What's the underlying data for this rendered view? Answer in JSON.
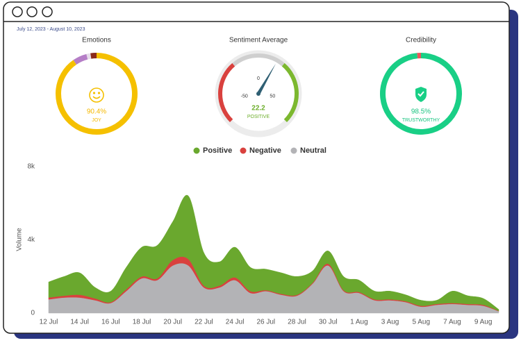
{
  "date_range": "July 12, 2023 - August 10, 2023",
  "chart_data": [
    {
      "type": "donut",
      "title": "Emotions",
      "values": [
        90.4,
        5.6,
        1.6,
        2.4
      ],
      "colors": [
        "#f5c000",
        "#b57ec7",
        "#e6dce9",
        "#8b2a1a"
      ],
      "value_labels": [
        "90.4%",
        null,
        null,
        null
      ],
      "label": "JOY",
      "text_color": "#f5b800"
    },
    {
      "type": "gauge",
      "title": "Sentiment Average",
      "value": 22.2,
      "label": "POSITIVE",
      "lim": [
        -100,
        100
      ],
      "ticks": [
        -50,
        0,
        50
      ],
      "bands": [
        {
          "from": -100,
          "to": -30,
          "color": "#d9413e"
        },
        {
          "from": -30,
          "to": 30,
          "color": "#cfcfcf"
        },
        {
          "from": 30,
          "to": 100,
          "color": "#7cb82f"
        }
      ],
      "text_color": "#6cae2a"
    },
    {
      "type": "donut",
      "title": "Credibility",
      "values": [
        98.5,
        1.5
      ],
      "colors": [
        "#19cf86",
        "#e8575a"
      ],
      "value_labels": [
        "98.5%",
        null
      ],
      "label": "TRUSTWORTHY",
      "text_color": "#19c480"
    },
    {
      "type": "area",
      "stacked": true,
      "y_label": "Volume",
      "categories": [
        "12 Jul",
        null,
        "14 Jul",
        null,
        "16 Jul",
        null,
        "18 Jul",
        null,
        "20 Jul",
        null,
        "22 Jul",
        null,
        "24 Jul",
        null,
        "26 Jul",
        null,
        "28 Jul",
        null,
        "30 Jul",
        null,
        "1 Aug",
        null,
        "3 Aug",
        null,
        "5 Aug",
        null,
        "7 Aug",
        null,
        "9 Aug",
        null
      ],
      "series": [
        {
          "name": "Positive",
          "color": "#6aa82e",
          "values": [
            850,
            1050,
            1200,
            600,
            600,
            1200,
            1600,
            1800,
            2100,
            3450,
            1800,
            1300,
            1650,
            1300,
            1150,
            1150,
            1000,
            650,
            700,
            750,
            650,
            450,
            450,
            350,
            300,
            200,
            650,
            450,
            350,
            80
          ]
        },
        {
          "name": "Negative",
          "color": "#d9413e",
          "values": [
            100,
            100,
            150,
            100,
            50,
            100,
            100,
            100,
            300,
            350,
            100,
            100,
            150,
            100,
            50,
            50,
            50,
            50,
            100,
            50,
            50,
            50,
            50,
            50,
            50,
            50,
            50,
            50,
            50,
            20
          ]
        },
        {
          "name": "Neutral",
          "color": "#b3b3b6",
          "values": [
            750,
            850,
            850,
            700,
            550,
            1200,
            1900,
            1800,
            2600,
            2600,
            1400,
            1400,
            1800,
            1100,
            1200,
            1000,
            950,
            1600,
            2600,
            1200,
            1100,
            700,
            700,
            600,
            350,
            450,
            500,
            450,
            400,
            100
          ]
        }
      ],
      "ylim": [
        0,
        8000
      ],
      "yticks": [
        0,
        {
          "value": 4000,
          "label": "4k"
        },
        {
          "value": 8000,
          "label": "8k"
        }
      ],
      "grid": false,
      "legend": "top"
    }
  ]
}
